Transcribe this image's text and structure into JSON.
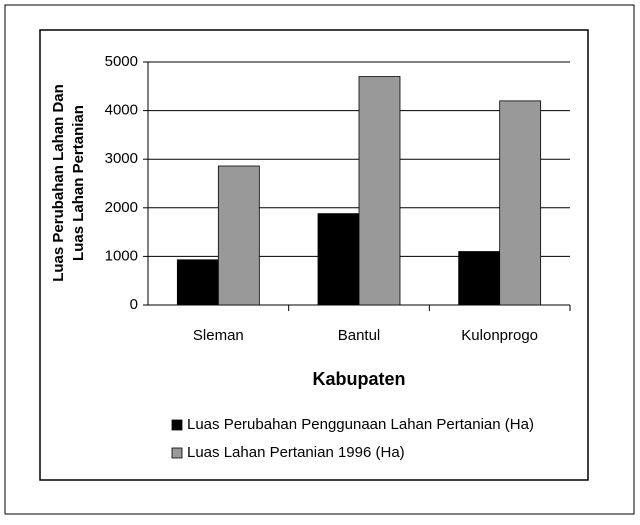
{
  "chart_data": {
    "type": "bar",
    "y_axis_label": [
      "Luas Perubahan Lahan Dan",
      "Luas Lahan Pertanian"
    ],
    "x_axis_label": "Kabupaten",
    "categories": [
      "Sleman",
      "Bantul",
      "Kulonprogo"
    ],
    "series": [
      {
        "name": "Luas Perubahan Penggunaan Lahan Pertanian (Ha)",
        "color": "#000000",
        "values": [
          930,
          1880,
          1100
        ]
      },
      {
        "name": "Luas Lahan Pertanian 1996 (Ha)",
        "color": "#999999",
        "values": [
          2860,
          4700,
          4200
        ]
      }
    ],
    "ylim": [
      0,
      5000
    ],
    "yticks": [
      0,
      1000,
      2000,
      3000,
      4000,
      5000
    ],
    "grid": true,
    "legend": "bottom"
  }
}
